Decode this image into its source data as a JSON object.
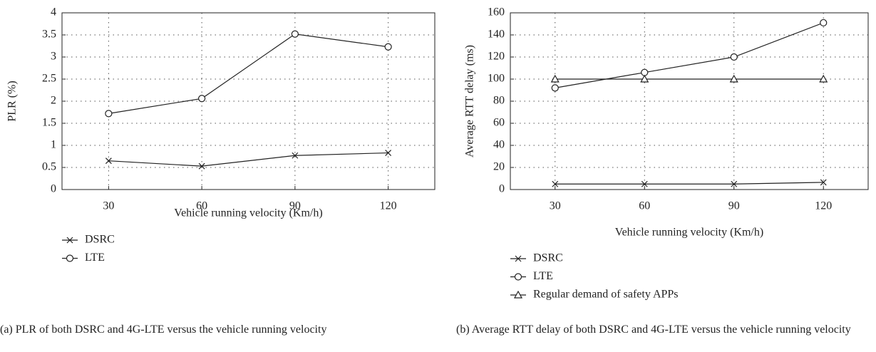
{
  "chart_data": [
    {
      "type": "line",
      "caption": "(a)  PLR of both DSRC and 4G-LTE versus the vehicle running velocity",
      "x_label": "Vehicle running velocity (Km/h)",
      "y_label": "PLR (%)",
      "categories": [
        "30",
        "60",
        "90",
        "120"
      ],
      "ylim": [
        0,
        4
      ],
      "yticks": [
        0,
        0.5,
        1,
        1.5,
        2,
        2.5,
        3,
        3.5,
        4
      ],
      "grid": true,
      "series": [
        {
          "name": "DSRC",
          "color": "#222222",
          "marker": "x",
          "values": [
            0.65,
            0.53,
            0.77,
            0.83
          ]
        },
        {
          "name": "LTE",
          "color": "#222222",
          "marker": "circle",
          "values": [
            1.72,
            2.06,
            3.52,
            3.23
          ]
        }
      ]
    },
    {
      "type": "line",
      "caption": "(b)  Average RTT delay of both DSRC and 4G-LTE versus the vehicle running velocity",
      "x_label": "Vehicle running velocity (Km/h)",
      "y_label": "Average RTT delay (ms)",
      "categories": [
        "30",
        "60",
        "90",
        "120"
      ],
      "ylim": [
        0,
        160
      ],
      "yticks": [
        0,
        20,
        40,
        60,
        80,
        100,
        120,
        140,
        160
      ],
      "grid": true,
      "series": [
        {
          "name": "DSRC",
          "color": "#222222",
          "marker": "x",
          "values": [
            5,
            5,
            5,
            6.5
          ]
        },
        {
          "name": "LTE",
          "color": "#222222",
          "marker": "circle",
          "values": [
            92,
            106,
            120,
            151
          ]
        },
        {
          "name": "Regular demand of safety APPs",
          "color": "#222222",
          "marker": "triangle",
          "values": [
            100,
            100,
            100,
            100
          ]
        }
      ]
    }
  ]
}
